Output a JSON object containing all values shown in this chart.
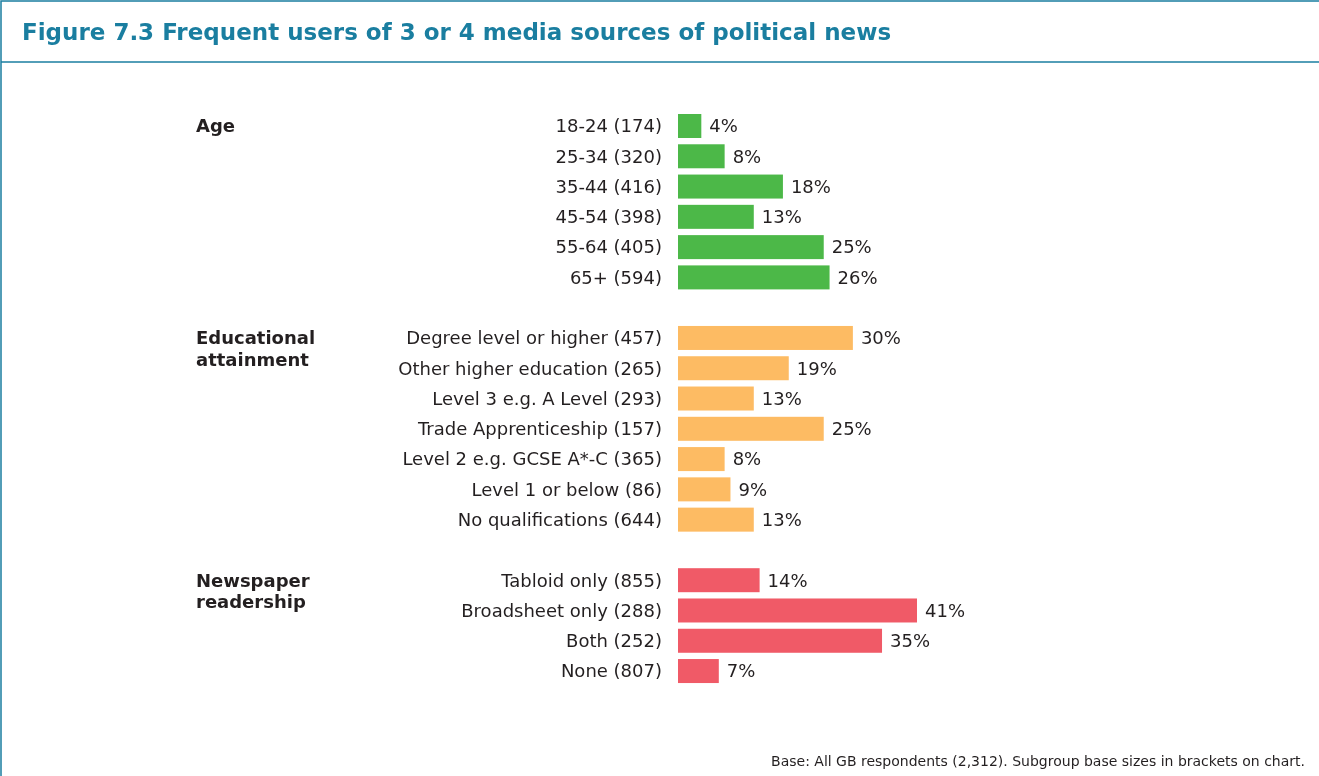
{
  "chart_data": {
    "type": "bar",
    "orientation": "horizontal",
    "title": "Figure 7.3 Frequent users of 3 or 4 media sources of political news",
    "categories": [
      "18-24 (174)",
      "25-34 (320)",
      "35-44 (416)",
      "45-54 (398)",
      "55-64 (405)",
      "65+ (594)",
      null,
      "Degree level or higher (457)",
      "Other higher education (265)",
      "Level 3 e.g. A Level (293)",
      "Trade Apprenticeship (157)",
      "Level 2 e.g. GCSE A*-C (365)",
      "Level 1 or below (86)",
      "No qualifications (644)",
      null,
      "Tabloid only (855)",
      "Broadsheet only (288)",
      "Both (252)",
      "None (807)"
    ],
    "series": [
      {
        "color": "#4cb848",
        "values": [
          4,
          8,
          18,
          13,
          25,
          26,
          null,
          null,
          null,
          null,
          null,
          null,
          null,
          null,
          null,
          null,
          null,
          null,
          null
        ],
        "value_labels": [
          "4%",
          "8%",
          "18%",
          "13%",
          "25%",
          "26%",
          null,
          null,
          null,
          null,
          null,
          null,
          null,
          null,
          null,
          null,
          null,
          null,
          null
        ]
      },
      {
        "color": "#fdbb63",
        "values": [
          null,
          null,
          null,
          null,
          null,
          null,
          null,
          30,
          19,
          13,
          25,
          8,
          9,
          13,
          null,
          null,
          null,
          null,
          null
        ],
        "value_labels": [
          null,
          null,
          null,
          null,
          null,
          null,
          null,
          "30%",
          "19%",
          "13%",
          "25%",
          "8%",
          "9%",
          "13%",
          null,
          null,
          null,
          null,
          null
        ]
      },
      {
        "color": "#f05a67",
        "values": [
          null,
          null,
          null,
          null,
          null,
          null,
          null,
          null,
          null,
          null,
          null,
          null,
          null,
          null,
          null,
          14,
          41,
          35,
          7
        ],
        "value_labels": [
          null,
          null,
          null,
          null,
          null,
          null,
          null,
          null,
          null,
          null,
          null,
          null,
          null,
          null,
          null,
          "14%",
          "41%",
          "35%",
          "7%"
        ]
      }
    ],
    "annotations": [
      "Age",
      "Educational attainment",
      "Newspaper readership",
      "Base: All GB respondents (2,312). Subgroup base sizes in brackets on chart."
    ]
  }
}
